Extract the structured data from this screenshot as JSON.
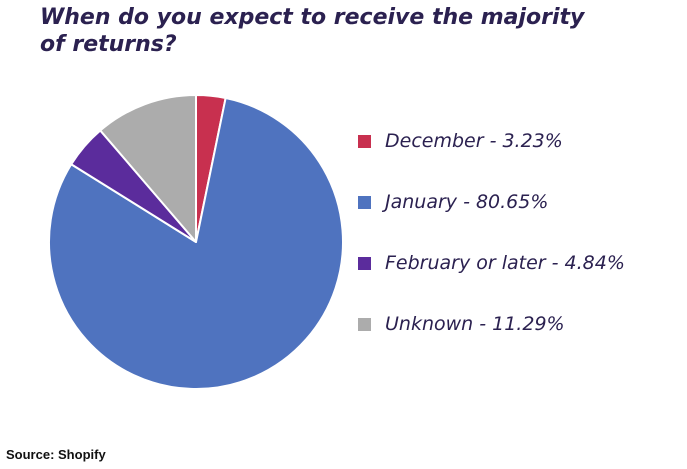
{
  "title_lines": [
    "When do you expect to receive the majority",
    "of returns?"
  ],
  "source": "Source: Shopify",
  "chart_data": {
    "type": "pie",
    "title": "When do you expect to receive the majority of returns?",
    "start_angle_deg": 0,
    "direction": "clockwise",
    "legend_position": "right",
    "slices": [
      {
        "label": "December",
        "value": 3.23,
        "color": "#c8304f",
        "legend_text": "December - 3.23%"
      },
      {
        "label": "January",
        "value": 80.65,
        "color": "#4f73bf",
        "legend_text": "January - 80.65%"
      },
      {
        "label": "February or later",
        "value": 4.84,
        "color": "#5b2c9c",
        "legend_text": "February or later - 4.84%"
      },
      {
        "label": "Unknown",
        "value": 11.29,
        "color": "#acacac",
        "legend_text": "Unknown - 11.29%"
      }
    ]
  }
}
